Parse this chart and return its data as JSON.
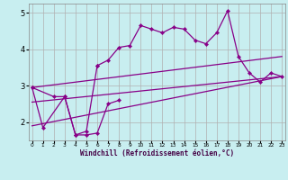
{
  "xlabel": "Windchill (Refroidissement éolien,°C)",
  "background_color": "#c8eef0",
  "grid_color": "#b0b0b0",
  "line_color": "#880088",
  "x_values": [
    0,
    1,
    2,
    3,
    4,
    5,
    6,
    7,
    8,
    9,
    10,
    11,
    12,
    13,
    14,
    15,
    16,
    17,
    18,
    19,
    20,
    21,
    22,
    23
  ],
  "line_jagged": [
    2.95,
    1.85,
    null,
    2.7,
    1.65,
    1.65,
    1.7,
    2.5,
    2.6,
    null,
    null,
    null,
    null,
    null,
    null,
    null,
    null,
    null,
    null,
    null,
    null,
    null,
    null,
    null
  ],
  "line_high": [
    null,
    null,
    null,
    null,
    null,
    null,
    3.55,
    3.7,
    4.05,
    4.1,
    4.65,
    4.55,
    4.45,
    4.6,
    4.55,
    4.25,
    4.15,
    4.45,
    5.05,
    3.8,
    3.35,
    3.1,
    3.35,
    3.25
  ],
  "line_connect": [
    2.95,
    null,
    2.7,
    2.7,
    1.65,
    1.75,
    3.55,
    null,
    null,
    null,
    null,
    null,
    null,
    null,
    null,
    null,
    null,
    null,
    null,
    null,
    null,
    null,
    null,
    null
  ],
  "line_trend1": {
    "x": [
      0,
      23
    ],
    "y": [
      2.95,
      3.8
    ]
  },
  "line_trend2": {
    "x": [
      0,
      23
    ],
    "y": [
      2.55,
      3.25
    ]
  },
  "line_trend3": {
    "x": [
      0,
      23
    ],
    "y": [
      1.9,
      3.25
    ]
  },
  "ylim": [
    1.5,
    5.25
  ],
  "xlim": [
    -0.3,
    23.3
  ],
  "yticks": [
    2,
    3,
    4,
    5
  ],
  "xticks": [
    0,
    1,
    2,
    3,
    4,
    5,
    6,
    7,
    8,
    9,
    10,
    11,
    12,
    13,
    14,
    15,
    16,
    17,
    18,
    19,
    20,
    21,
    22,
    23
  ]
}
